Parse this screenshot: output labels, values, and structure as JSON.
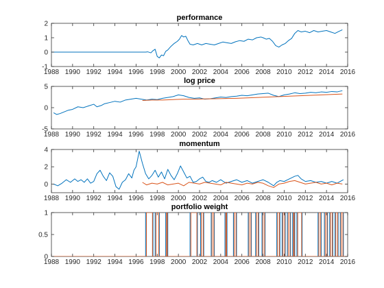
{
  "chart_data": [
    {
      "type": "line",
      "title": "performance",
      "xlim": [
        1988,
        2016
      ],
      "ylim": [
        -1,
        2
      ],
      "xticks": [
        1988,
        1990,
        1992,
        1994,
        1996,
        1998,
        2000,
        2002,
        2004,
        2006,
        2008,
        2010,
        2012,
        2014,
        2016
      ],
      "yticks": [
        -1,
        0,
        1,
        2
      ],
      "series": [
        {
          "color": "#0072BD",
          "x": [
            1988,
            1996.9,
            1997.1,
            1997.4,
            1997.6,
            1997.8,
            1998.0,
            1998.2,
            1998.4,
            1998.6,
            1998.8,
            1999.0,
            1999.3,
            1999.6,
            1999.9,
            2000.1,
            2000.3,
            2000.5,
            2000.7,
            2000.9,
            2001.1,
            2001.4,
            2001.8,
            2002.2,
            2002.6,
            2003.0,
            2003.4,
            2003.8,
            2004.2,
            2004.6,
            2005.0,
            2005.4,
            2005.8,
            2006.2,
            2006.6,
            2007.0,
            2007.4,
            2007.8,
            2008.0,
            2008.3,
            2008.6,
            2008.9,
            2009.2,
            2009.5,
            2009.8,
            2010.1,
            2010.4,
            2010.7,
            2011.0,
            2011.3,
            2011.6,
            2012.0,
            2012.4,
            2012.8,
            2013.2,
            2013.6,
            2014.0,
            2014.4,
            2014.8,
            2015.2,
            2015.5
          ],
          "y": [
            0,
            0,
            0.02,
            -0.05,
            0.1,
            0.2,
            -0.3,
            -0.4,
            -0.2,
            -0.25,
            0.05,
            0.15,
            0.4,
            0.6,
            0.75,
            0.9,
            1.15,
            1.05,
            1.1,
            0.8,
            0.55,
            0.5,
            0.6,
            0.5,
            0.6,
            0.55,
            0.5,
            0.6,
            0.7,
            0.65,
            0.6,
            0.72,
            0.8,
            0.75,
            0.9,
            0.85,
            1.0,
            1.05,
            1.0,
            0.9,
            0.95,
            0.75,
            0.45,
            0.35,
            0.5,
            0.6,
            0.8,
            0.95,
            1.3,
            1.5,
            1.4,
            1.45,
            1.35,
            1.5,
            1.4,
            1.45,
            1.5,
            1.4,
            1.3,
            1.45,
            1.55
          ]
        }
      ]
    },
    {
      "type": "line",
      "title": "log price",
      "xlim": [
        1988,
        2016
      ],
      "ylim": [
        -5,
        5
      ],
      "xticks": [
        1988,
        1990,
        1992,
        1994,
        1996,
        1998,
        2000,
        2002,
        2004,
        2006,
        2008,
        2010,
        2012,
        2014,
        2016
      ],
      "yticks": [
        -5,
        0,
        5
      ],
      "series": [
        {
          "color": "#0072BD",
          "x": [
            1988.2,
            1988.5,
            1988.8,
            1989.2,
            1989.6,
            1990.0,
            1990.5,
            1991.0,
            1991.5,
            1992.0,
            1992.3,
            1992.7,
            1993.0,
            1993.5,
            1994.0,
            1994.5,
            1995.0,
            1995.5,
            1996.0,
            1996.5,
            1997.0,
            1997.5,
            1998.0,
            1998.5,
            1999.0,
            1999.5,
            2000.0,
            2000.5,
            2001.0,
            2001.5,
            2002.0,
            2002.5,
            2003.0,
            2003.5,
            2004.0,
            2004.5,
            2005.0,
            2005.5,
            2006.0,
            2006.5,
            2007.0,
            2007.5,
            2008.0,
            2008.5,
            2009.0,
            2009.5,
            2010.0,
            2010.5,
            2011.0,
            2011.5,
            2012.0,
            2012.5,
            2013.0,
            2013.5,
            2014.0,
            2014.5,
            2015.0,
            2015.5
          ],
          "y": [
            -1.2,
            -1.6,
            -1.4,
            -1.0,
            -0.6,
            -0.4,
            0.2,
            0.0,
            0.4,
            0.8,
            0.2,
            0.5,
            0.9,
            1.2,
            1.5,
            1.3,
            1.8,
            2.0,
            2.2,
            2.0,
            1.8,
            2.0,
            1.9,
            2.2,
            2.4,
            2.6,
            3.0,
            2.8,
            2.4,
            2.2,
            2.3,
            2.0,
            2.1,
            2.3,
            2.5,
            2.4,
            2.6,
            2.7,
            2.9,
            2.8,
            3.0,
            3.2,
            3.3,
            3.4,
            2.9,
            2.6,
            3.0,
            3.2,
            3.5,
            3.3,
            3.4,
            3.6,
            3.5,
            3.7,
            3.6,
            3.8,
            3.7,
            4.0
          ]
        },
        {
          "color": "#D95319",
          "x": [
            1996.6,
            1997.5,
            1998.5,
            1999.5,
            2000.5,
            2001.5,
            2002.5,
            2003.5,
            2004.5,
            2005.5,
            2006.5,
            2007.5,
            2008.5,
            2009.5,
            2010.5,
            2011.5,
            2012.5,
            2013.5,
            2014.5,
            2015.5
          ],
          "y": [
            1.7,
            1.8,
            1.8,
            1.9,
            2.0,
            2.0,
            2.05,
            2.1,
            2.15,
            2.2,
            2.3,
            2.4,
            2.5,
            2.6,
            2.7,
            2.8,
            2.9,
            3.0,
            3.1,
            3.2
          ]
        }
      ]
    },
    {
      "type": "line",
      "title": "momentum",
      "xlim": [
        1988,
        2016
      ],
      "ylim": [
        -1,
        4
      ],
      "xticks": [
        1988,
        1990,
        1992,
        1994,
        1996,
        1998,
        2000,
        2002,
        2004,
        2006,
        2008,
        2010,
        2012,
        2014,
        2016
      ],
      "yticks": [
        0,
        2,
        4
      ],
      "series": [
        {
          "color": "#0072BD",
          "x": [
            1988.2,
            1988.6,
            1989.0,
            1989.4,
            1989.8,
            1990.2,
            1990.5,
            1990.8,
            1991.1,
            1991.4,
            1991.7,
            1992.0,
            1992.3,
            1992.6,
            1992.9,
            1993.2,
            1993.5,
            1993.8,
            1994.1,
            1994.4,
            1994.7,
            1995.0,
            1995.3,
            1995.6,
            1995.8,
            1996.0,
            1996.3,
            1996.6,
            1996.9,
            1997.2,
            1997.5,
            1997.8,
            1998.1,
            1998.4,
            1998.7,
            1999.0,
            1999.3,
            1999.6,
            1999.9,
            2000.2,
            2000.5,
            2000.8,
            2001.1,
            2001.4,
            2001.7,
            2002.0,
            2002.3,
            2002.6,
            2002.9,
            2003.2,
            2003.6,
            2004.0,
            2004.5,
            2005.0,
            2005.5,
            2006.0,
            2006.5,
            2007.0,
            2007.5,
            2008.0,
            2008.5,
            2009.0,
            2009.3,
            2009.6,
            2010.0,
            2010.5,
            2011.0,
            2011.3,
            2011.6,
            2012.0,
            2012.5,
            2013.0,
            2013.5,
            2014.0,
            2014.5,
            2015.0,
            2015.3,
            2015.6
          ],
          "y": [
            0.0,
            -0.2,
            0.1,
            0.5,
            0.2,
            0.6,
            0.3,
            0.5,
            0.2,
            0.6,
            0.1,
            0.3,
            1.2,
            1.6,
            0.9,
            0.4,
            1.3,
            0.9,
            -0.3,
            -0.6,
            0.2,
            0.5,
            1.2,
            0.7,
            1.6,
            2.0,
            3.8,
            2.4,
            1.2,
            0.6,
            1.0,
            1.6,
            0.8,
            1.4,
            0.6,
            1.7,
            1.0,
            0.5,
            1.2,
            2.1,
            1.4,
            0.7,
            0.9,
            0.2,
            0.3,
            0.6,
            0.8,
            0.3,
            0.2,
            0.4,
            0.2,
            0.5,
            0.1,
            0.3,
            0.5,
            0.2,
            0.4,
            0.1,
            0.3,
            0.5,
            0.2,
            -0.2,
            0.2,
            0.4,
            0.3,
            0.6,
            0.9,
            1.0,
            0.6,
            0.3,
            0.4,
            0.2,
            0.3,
            0.1,
            0.3,
            0.1,
            0.3,
            0.5
          ]
        },
        {
          "color": "#D95319",
          "x": [
            1996.6,
            1997.0,
            1997.5,
            1998.0,
            1998.5,
            1999.0,
            1999.5,
            2000.0,
            2000.5,
            2001.0,
            2001.5,
            2002.0,
            2002.5,
            2003.0,
            2003.5,
            2004.0,
            2004.5,
            2005.0,
            2005.5,
            2006.0,
            2006.5,
            2007.0,
            2007.5,
            2008.0,
            2008.5,
            2009.0,
            2009.5,
            2010.0,
            2010.5,
            2011.0,
            2011.5,
            2012.0,
            2012.5,
            2013.0,
            2013.5,
            2014.0,
            2014.5,
            2015.0,
            2015.5
          ],
          "y": [
            0.2,
            -0.1,
            0.1,
            0.0,
            0.2,
            -0.1,
            0.0,
            0.1,
            -0.2,
            0.2,
            0.1,
            0.0,
            0.2,
            0.1,
            0.0,
            -0.1,
            0.2,
            0.1,
            0.0,
            -0.1,
            0.1,
            0.0,
            0.2,
            0.1,
            -0.2,
            -0.4,
            0.0,
            0.1,
            0.3,
            0.4,
            0.2,
            0.0,
            0.1,
            0.2,
            0.0,
            0.1,
            -0.1,
            0.1,
            0.0
          ]
        }
      ]
    },
    {
      "type": "line",
      "title": "portfolio weight",
      "xlim": [
        1988,
        2016
      ],
      "ylim": [
        0,
        1
      ],
      "xticks": [
        1988,
        1990,
        1992,
        1994,
        1996,
        1998,
        2000,
        2002,
        2004,
        2006,
        2008,
        2010,
        2012,
        2014,
        2016
      ],
      "yticks": [
        0,
        0.5,
        1
      ],
      "ytick_labels": [
        "0",
        "0.5",
        "1"
      ],
      "switch_times": [
        1996.9,
        1997.6,
        1997.8,
        1998.2,
        1998.8,
        1999.0,
        2001.1,
        2001.8,
        2002.1,
        2002.4,
        2003.1,
        2003.4,
        2004.4,
        2004.6,
        2005.2,
        2005.5,
        2006.6,
        2006.9,
        2007.3,
        2007.6,
        2007.9,
        2008.2,
        2009.3,
        2009.6,
        2009.8,
        2010.1,
        2010.3,
        2010.6,
        2010.8,
        2011.0,
        2011.2,
        2011.7,
        2013.2,
        2013.5,
        2013.8,
        2014.1,
        2014.3,
        2014.6,
        2014.8,
        2015.1,
        2015.3,
        2015.6
      ],
      "series": [
        {
          "color": "#0072BD",
          "start": 0,
          "end": 1
        },
        {
          "color": "#D95319",
          "start": 0,
          "end": 0
        }
      ]
    }
  ]
}
